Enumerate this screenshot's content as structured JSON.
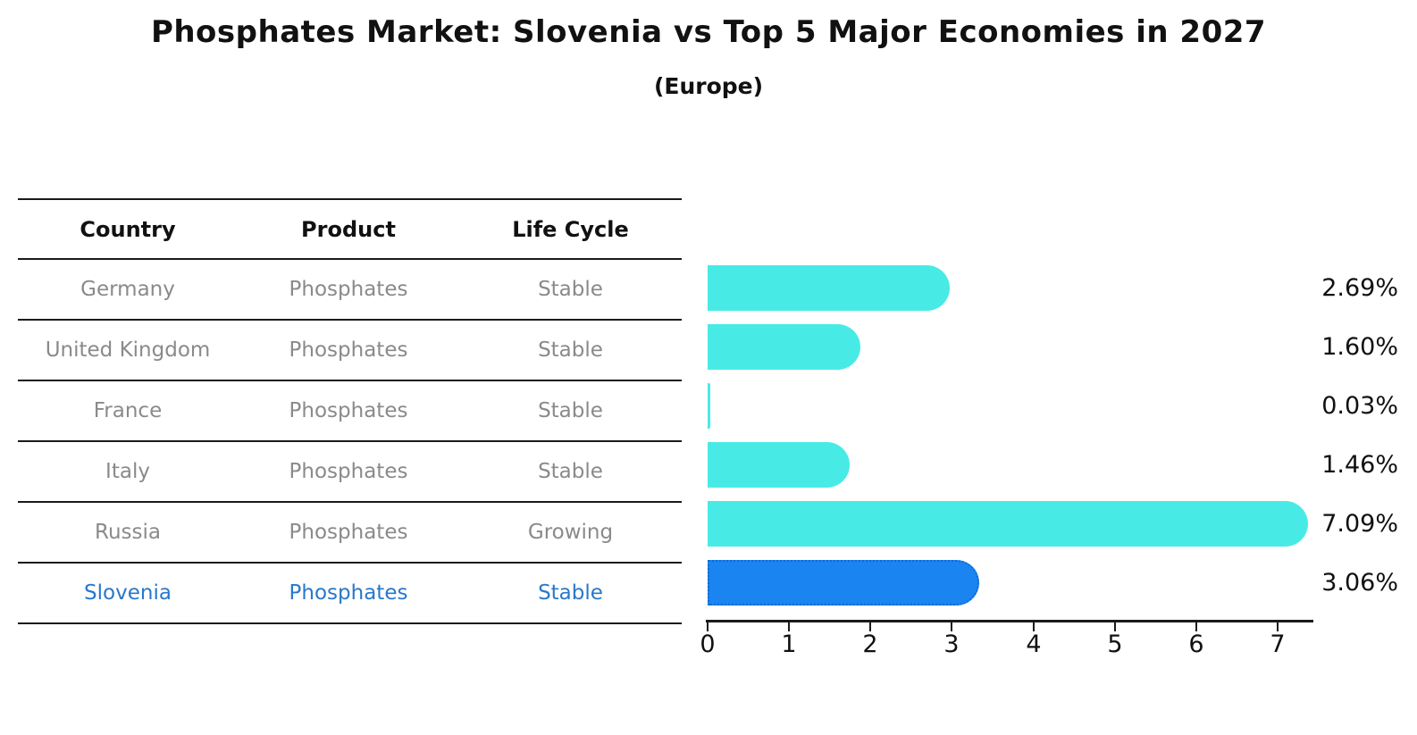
{
  "title": "Phosphates Market: Slovenia vs Top 5 Major Economies in 2027",
  "subtitle": "(Europe)",
  "table": {
    "headers": {
      "country": "Country",
      "product": "Product",
      "life_cycle": "Life Cycle"
    },
    "rows": [
      {
        "country": "Germany",
        "product": "Phosphates",
        "life_cycle": "Stable"
      },
      {
        "country": "United Kingdom",
        "product": "Phosphates",
        "life_cycle": "Stable"
      },
      {
        "country": "France",
        "product": "Phosphates",
        "life_cycle": "Stable"
      },
      {
        "country": "Italy",
        "product": "Phosphates",
        "life_cycle": "Stable"
      },
      {
        "country": "Russia",
        "product": "Phosphates",
        "life_cycle": "Growing"
      },
      {
        "country": "Slovenia",
        "product": "Phosphates",
        "life_cycle": "Stable"
      }
    ],
    "highlighted_row": "Slovenia"
  },
  "chart_data": {
    "type": "bar",
    "orientation": "horizontal",
    "categories": [
      "Germany",
      "United Kingdom",
      "France",
      "Italy",
      "Russia",
      "Slovenia"
    ],
    "values": [
      2.69,
      1.6,
      0.03,
      1.46,
      7.09,
      3.06
    ],
    "value_labels": [
      "2.69%",
      "1.60%",
      "0.03%",
      "1.46%",
      "7.09%",
      "3.06%"
    ],
    "x_ticks": [
      "0",
      "1",
      "2",
      "3",
      "4",
      "5",
      "6",
      "7"
    ],
    "xlim": [
      0,
      7.45
    ],
    "grid": false,
    "legend": false,
    "bar_color": "#48EAE6",
    "highlight_index": 5,
    "highlight_color": "#1A84F0",
    "highlight_border_color": "#0d6bd6"
  },
  "colors": {
    "title": "#111111",
    "row_text": "#8a8a8a",
    "highlight_text": "#2878cb",
    "axis": "#1a1a1a"
  }
}
